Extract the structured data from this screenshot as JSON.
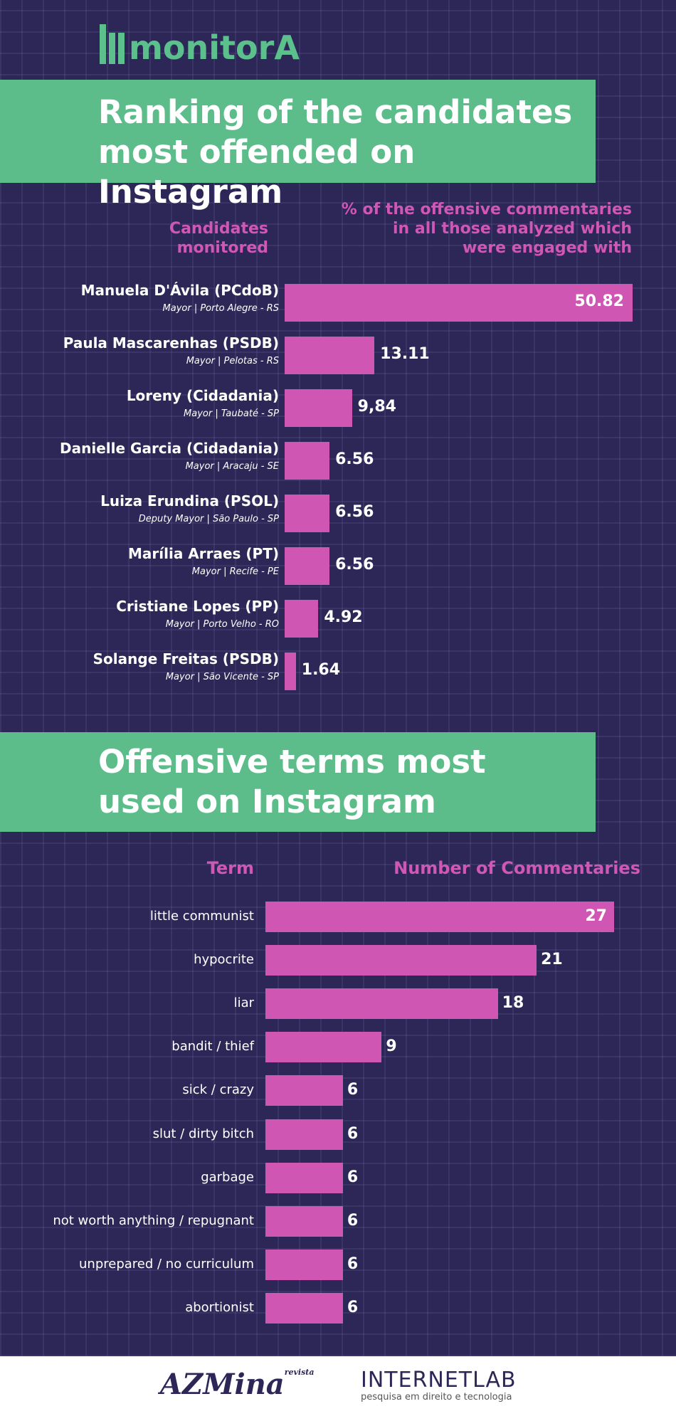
{
  "brand": {
    "logo": "monitorA",
    "green": "#5cbd8b",
    "pink": "#cf57b3",
    "background": "#2d2758"
  },
  "section1": {
    "title_line1": "Ranking of the candidates",
    "title_line2": "most offended on Instagram",
    "col_left_line1": "Candidates",
    "col_left_line2": "monitored",
    "col_right_line1": "% of the offensive commentaries",
    "col_right_line2": "in all those analyzed which",
    "col_right_line3": "were engaged with"
  },
  "section2": {
    "title_line1": "Offensive terms most",
    "title_line2": "used on Instagram",
    "col_left": "Term",
    "col_right": "Number of Commentaries"
  },
  "chart_data": [
    {
      "type": "bar",
      "orientation": "horizontal",
      "title": "Ranking of the candidates most offended on Instagram",
      "xlabel": "% of the offensive commentaries in all those analyzed which were engaged with",
      "ylabel": "Candidates monitored",
      "categories": [
        "Manuela D'Ávila (PCdoB)",
        "Paula Mascarenhas (PSDB)",
        "Loreny (Cidadania)",
        "Danielle Garcia (Cidadania)",
        "Luiza Erundina (PSOL)",
        "Marília Arraes (PT)",
        "Cristiane Lopes (PP)",
        "Solange Freitas (PSDB)"
      ],
      "subtitles": [
        "Mayor | Porto Alegre - RS",
        "Mayor | Pelotas - RS",
        "Mayor | Taubaté - SP",
        "Mayor | Aracaju - SE",
        "Deputy Mayor | São Paulo - SP",
        "Mayor | Recife - PE",
        "Mayor | Porto Velho - RO",
        "Mayor | São Vicente - SP"
      ],
      "values": [
        50.82,
        13.11,
        9.84,
        6.56,
        6.56,
        6.56,
        4.92,
        1.64
      ],
      "labels": [
        "50.82",
        "13.11",
        "9,84",
        "6.56",
        "6.56",
        "6.56",
        "4.92",
        "1.64"
      ]
    },
    {
      "type": "bar",
      "orientation": "horizontal",
      "title": "Offensive terms most used on Instagram",
      "xlabel": "Number of Commentaries",
      "ylabel": "Term",
      "categories": [
        "little communist",
        "hypocrite",
        "liar",
        "bandit / thief",
        "sick / crazy",
        "slut / dirty bitch",
        "garbage",
        "not worth anything / repugnant",
        "unprepared / no curriculum",
        "abortionist"
      ],
      "values": [
        27,
        21,
        18,
        9,
        6,
        6,
        6,
        6,
        6,
        6
      ]
    }
  ],
  "footer": {
    "azmina": "AZMina",
    "azmina_small": "revista",
    "internetlab": "INTERNETLAB",
    "internetlab_tagline": "pesquisa em direito e tecnologia"
  }
}
